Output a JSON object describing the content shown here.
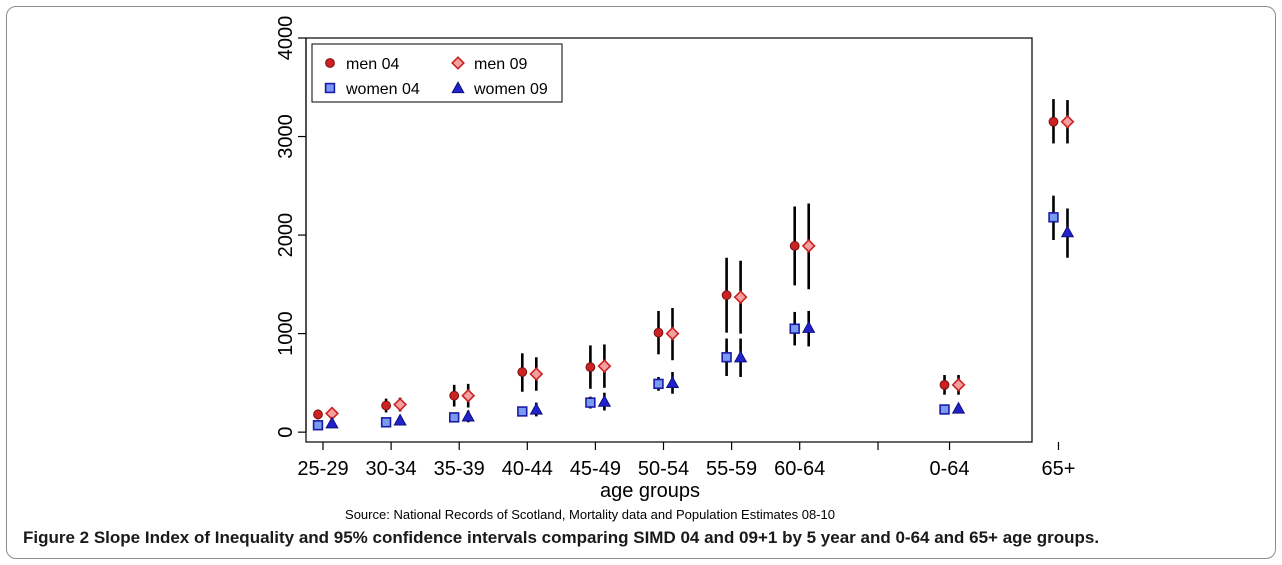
{
  "chart_data": {
    "type": "scatter",
    "categories": [
      "25-29",
      "30-34",
      "35-39",
      "40-44",
      "45-49",
      "50-54",
      "55-59",
      "60-64",
      "0-64",
      "65+"
    ],
    "xlabel": "age groups",
    "ylabel": "",
    "ylim": [
      -100,
      4000
    ],
    "yticks": [
      0,
      1000,
      2000,
      3000,
      4000
    ],
    "grid": false,
    "legend": "top-left",
    "series": [
      {
        "name": "men 04",
        "marker": "circle",
        "color": "#cc2222",
        "values": [
          180,
          270,
          370,
          610,
          660,
          1010,
          1390,
          1890,
          480,
          3150
        ],
        "ci_low": [
          130,
          200,
          260,
          410,
          440,
          790,
          1010,
          1490,
          380,
          2930
        ],
        "ci_high": [
          230,
          340,
          480,
          800,
          880,
          1230,
          1770,
          2290,
          580,
          3380
        ]
      },
      {
        "name": "men 09",
        "marker": "diamond",
        "color": "#cc2222",
        "values": [
          190,
          280,
          370,
          590,
          670,
          1000,
          1370,
          1890,
          480,
          3150
        ],
        "ci_low": [
          140,
          210,
          250,
          420,
          450,
          730,
          1000,
          1450,
          380,
          2930
        ],
        "ci_high": [
          240,
          350,
          490,
          760,
          890,
          1260,
          1740,
          2320,
          580,
          3370
        ]
      },
      {
        "name": "women 04",
        "marker": "square",
        "color": "#2222cc",
        "values": [
          70,
          100,
          150,
          210,
          300,
          490,
          760,
          1050,
          230,
          2180
        ],
        "ci_low": [
          40,
          70,
          110,
          160,
          240,
          420,
          570,
          880,
          190,
          1950
        ],
        "ci_high": [
          100,
          130,
          190,
          260,
          360,
          560,
          950,
          1220,
          270,
          2400
        ]
      },
      {
        "name": "women 09",
        "marker": "triangle",
        "color": "#2222cc",
        "values": [
          90,
          120,
          160,
          230,
          310,
          500,
          760,
          1060,
          240,
          2030
        ],
        "ci_low": [
          60,
          90,
          100,
          160,
          220,
          390,
          560,
          870,
          200,
          1770
        ],
        "ci_high": [
          120,
          150,
          220,
          300,
          400,
          610,
          950,
          1230,
          280,
          2270
        ]
      }
    ]
  },
  "source_note": "Source: National Records of Scotland, Mortality data and Population Estimates 08-10",
  "caption": {
    "bold": "Figure 2 Slope Index of Inequality and 95% confidence intervals comparing SIMD 04 and 09+1 by 5 year and 0-64 and 65+ age groups."
  }
}
